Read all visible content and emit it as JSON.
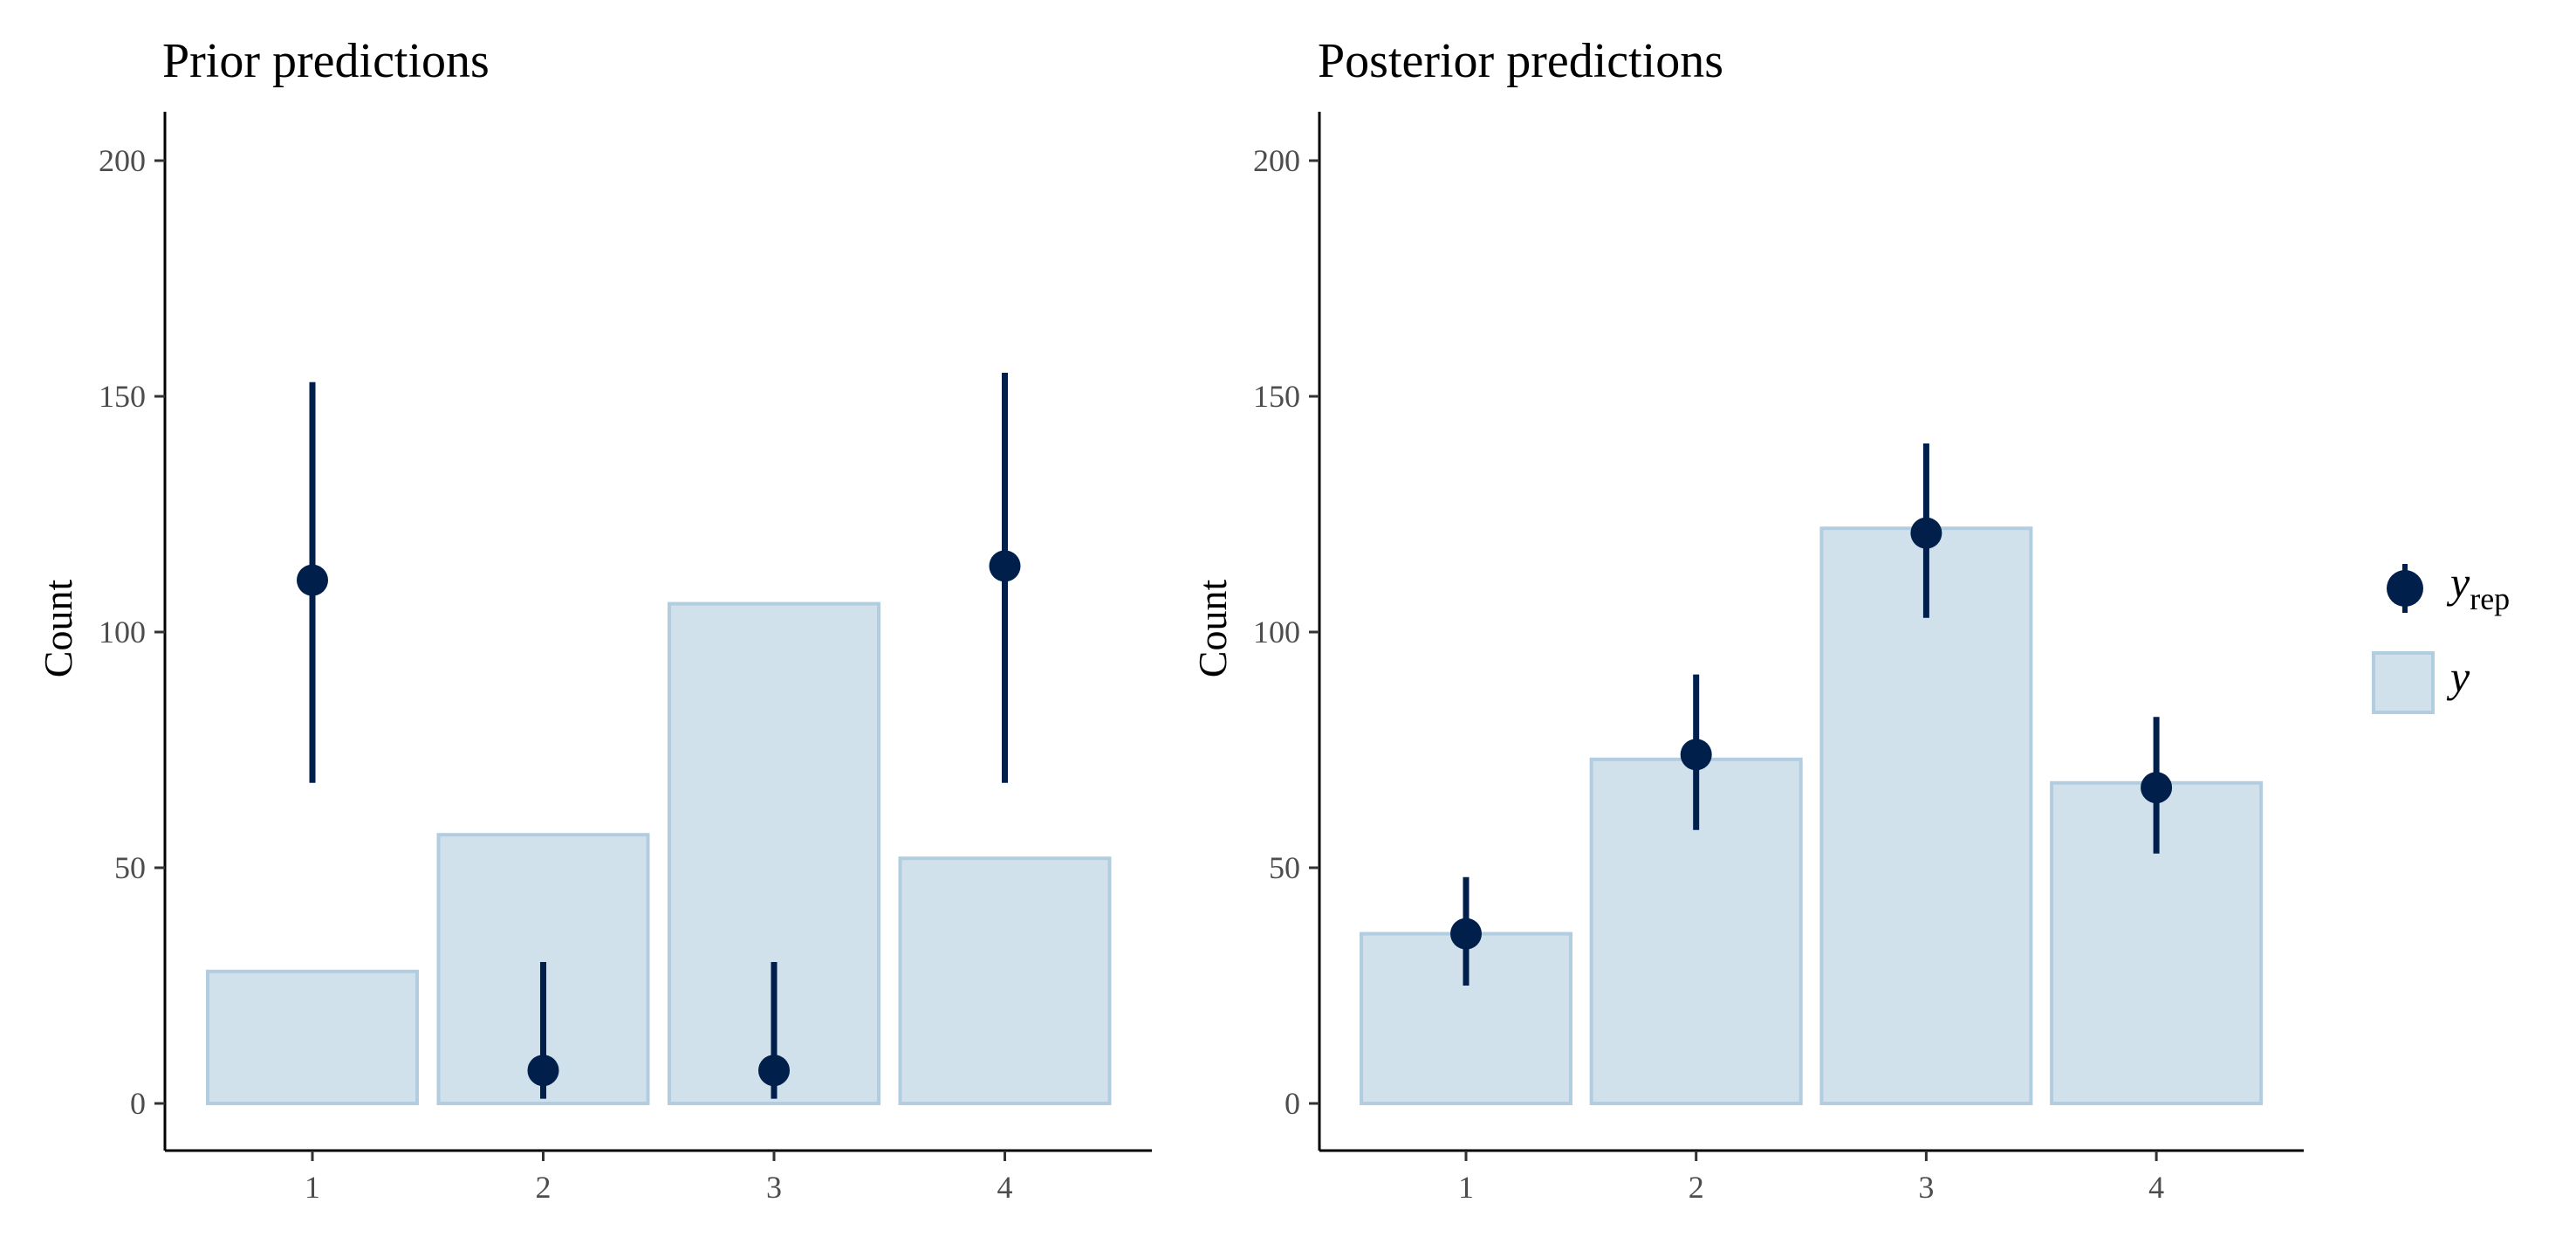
{
  "colors": {
    "bar_fill": "#d1e1ec",
    "bar_stroke": "#b3cde0",
    "point": "#011f4b",
    "axis": "#000000"
  },
  "legend": {
    "yrep_main": "y",
    "yrep_sub": "rep",
    "y_label": "y"
  },
  "chart_data": [
    {
      "type": "bar",
      "title": "Prior predictions",
      "ylabel": "Count",
      "xlabel": "",
      "categories": [
        "1",
        "2",
        "3",
        "4"
      ],
      "yticks": [
        "0",
        "50",
        "100",
        "150",
        "200"
      ],
      "ylim": [
        -10,
        210
      ],
      "series": [
        {
          "name": "y",
          "values": [
            28,
            57,
            106,
            52
          ]
        },
        {
          "name": "y_rep",
          "median": [
            111,
            7,
            7,
            114
          ],
          "lower": [
            68,
            1,
            1,
            68
          ],
          "upper": [
            153,
            30,
            30,
            155
          ]
        }
      ]
    },
    {
      "type": "bar",
      "title": "Posterior predictions",
      "ylabel": "Count",
      "xlabel": "",
      "categories": [
        "1",
        "2",
        "3",
        "4"
      ],
      "yticks": [
        "0",
        "50",
        "100",
        "150",
        "200"
      ],
      "ylim": [
        -10,
        210
      ],
      "series": [
        {
          "name": "y",
          "values": [
            36,
            73,
            122,
            68
          ]
        },
        {
          "name": "y_rep",
          "median": [
            36,
            74,
            121,
            67
          ],
          "lower": [
            25,
            58,
            103,
            53
          ],
          "upper": [
            48,
            91,
            140,
            82
          ]
        }
      ]
    }
  ]
}
